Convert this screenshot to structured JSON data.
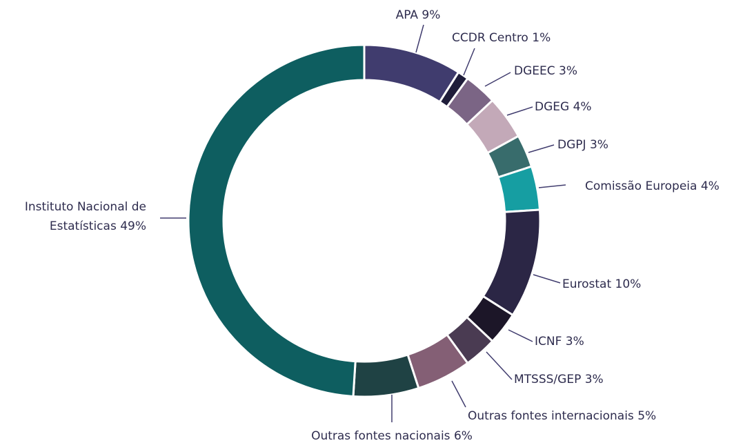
{
  "chart_data": {
    "type": "donut",
    "categories": [
      "APA",
      "CCDR Centro",
      "DGEEC",
      "DGEG",
      "DGPJ",
      "Comissão Europeia",
      "Eurostat",
      "ICNF",
      "MTSSS/GEP",
      "Outras fontes internacionais",
      "Outras fontes nacionais",
      "Instituto Nacional de Estatísticas"
    ],
    "values": [
      9,
      1,
      3,
      4,
      3,
      4,
      10,
      3,
      3,
      5,
      6,
      49
    ],
    "value_labels": [
      "9%",
      "1%",
      "3%",
      "4%",
      "3%",
      "4%",
      "10%",
      "3%",
      "3%",
      "5%",
      "6%",
      "49%"
    ],
    "colors": [
      "#403c6e",
      "#1f1d3a",
      "#7b6585",
      "#c3a9b8",
      "#386c6c",
      "#169ea2",
      "#2b2645",
      "#1c1628",
      "#4a3b52",
      "#845f75",
      "#1f4244",
      "#0e5e60"
    ]
  }
}
